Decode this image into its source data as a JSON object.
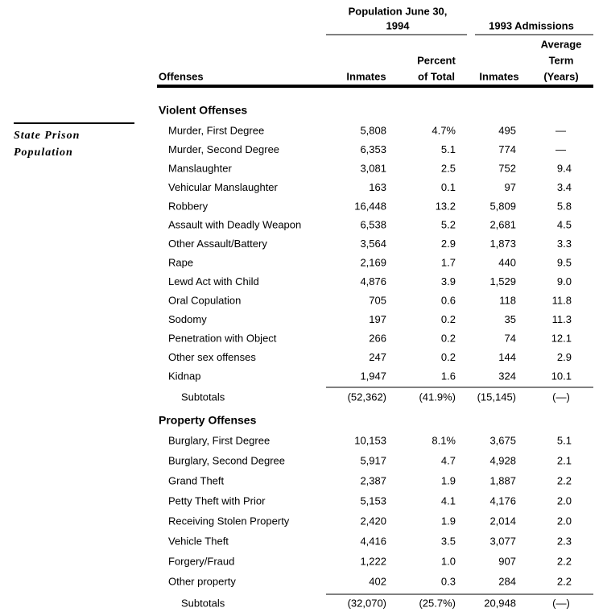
{
  "sidebar": {
    "title_lines": [
      "State Prison",
      "Population"
    ]
  },
  "header": {
    "group_1_lines": [
      "Population June 30,",
      "1994"
    ],
    "group_2": "1993 Admissions",
    "columns": {
      "offenses": [
        "Offenses"
      ],
      "inmates": [
        "Inmates"
      ],
      "percent": [
        "Percent",
        "of Total"
      ],
      "admissions": [
        "Inmates"
      ],
      "term": [
        "Average",
        "Term",
        "(Years)"
      ]
    }
  },
  "sections": [
    {
      "title": "Violent Offenses",
      "rows": [
        [
          "Murder, First Degree",
          "5,808",
          "4.7%",
          "495",
          "—"
        ],
        [
          "Murder, Second Degree",
          "6,353",
          "5.1",
          "774",
          "—"
        ],
        [
          "Manslaughter",
          "3,081",
          "2.5",
          "752",
          "9.4"
        ],
        [
          "Vehicular Manslaughter",
          "163",
          "0.1",
          "97",
          "3.4"
        ],
        [
          "Robbery",
          "16,448",
          "13.2",
          "5,809",
          "5.8"
        ],
        [
          "Assault with Deadly Weapon",
          "6,538",
          "5.2",
          "2,681",
          "4.5"
        ],
        [
          "Other Assault/Battery",
          "3,564",
          "2.9",
          "1,873",
          "3.3"
        ],
        [
          "Rape",
          "2,169",
          "1.7",
          "440",
          "9.5"
        ],
        [
          "Lewd Act with Child",
          "4,876",
          "3.9",
          "1,529",
          "9.0"
        ],
        [
          "Oral Copulation",
          "705",
          "0.6",
          "118",
          "11.8"
        ],
        [
          "Sodomy",
          "197",
          "0.2",
          "35",
          "11.3"
        ],
        [
          "Penetration with Object",
          "266",
          "0.2",
          "74",
          "12.1"
        ],
        [
          "Other sex offenses",
          "247",
          "0.2",
          "144",
          "2.9"
        ],
        [
          "Kidnap",
          "1,947",
          "1.6",
          "324",
          "10.1"
        ]
      ],
      "subtotal": [
        "Subtotals",
        "(52,362)",
        "(41.9%)",
        "(15,145)",
        "(—)"
      ]
    },
    {
      "title": "Property Offenses",
      "rows": [
        [
          "Burglary, First Degree",
          "10,153",
          "8.1%",
          "3,675",
          "5.1"
        ],
        [
          "Burglary, Second Degree",
          "5,917",
          "4.7",
          "4,928",
          "2.1"
        ],
        [
          "Grand Theft",
          "2,387",
          "1.9",
          "1,887",
          "2.2"
        ],
        [
          "Petty Theft with Prior",
          "5,153",
          "4.1",
          "4,176",
          "2.0"
        ],
        [
          "Receiving Stolen Property",
          "2,420",
          "1.9",
          "2,014",
          "2.0"
        ],
        [
          "Vehicle Theft",
          "4,416",
          "3.5",
          "3,077",
          "2.3"
        ],
        [
          "Forgery/Fraud",
          "1,222",
          "1.0",
          "907",
          "2.2"
        ],
        [
          "Other property",
          "402",
          "0.3",
          "284",
          "2.2"
        ]
      ],
      "subtotal": [
        "Subtotals",
        "(32,070)",
        "(25.7%)",
        "20,948",
        "(—)"
      ]
    }
  ]
}
